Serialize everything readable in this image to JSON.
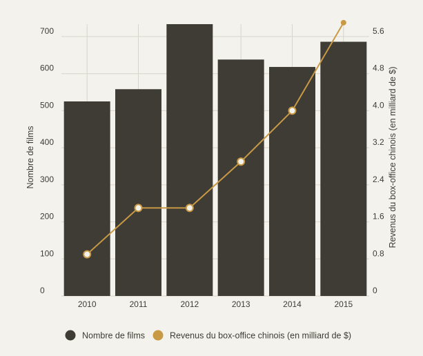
{
  "chart_data": {
    "type": "bar",
    "categories": [
      "2010",
      "2011",
      "2012",
      "2013",
      "2014",
      "2015"
    ],
    "series": [
      {
        "name": "Nombre de films",
        "type": "bar",
        "axis": "left",
        "color": "#3f3b35",
        "values": [
          525,
          558,
          745,
          638,
          618,
          686
        ]
      },
      {
        "name": "Revenus du box-office chinois (en milliard de $)",
        "type": "line",
        "axis": "right",
        "color": "#c89a45",
        "values": [
          0.9,
          1.9,
          1.9,
          2.9,
          4.0,
          5.9
        ]
      }
    ],
    "ylabel": "Nombre de films",
    "y2label": "Revenus du box-office chinois (en milliard de $)",
    "ylim": [
      0,
      700
    ],
    "y2lim": [
      0,
      5.6
    ],
    "yticks": [
      "0",
      "100",
      "200",
      "300",
      "400",
      "500",
      "600",
      "700"
    ],
    "y2ticks": [
      "0",
      "0.8",
      "1.6",
      "2.4",
      "3.2",
      "4.0",
      "4.8",
      "5.6"
    ],
    "grid": true,
    "legend_position": "bottom"
  }
}
